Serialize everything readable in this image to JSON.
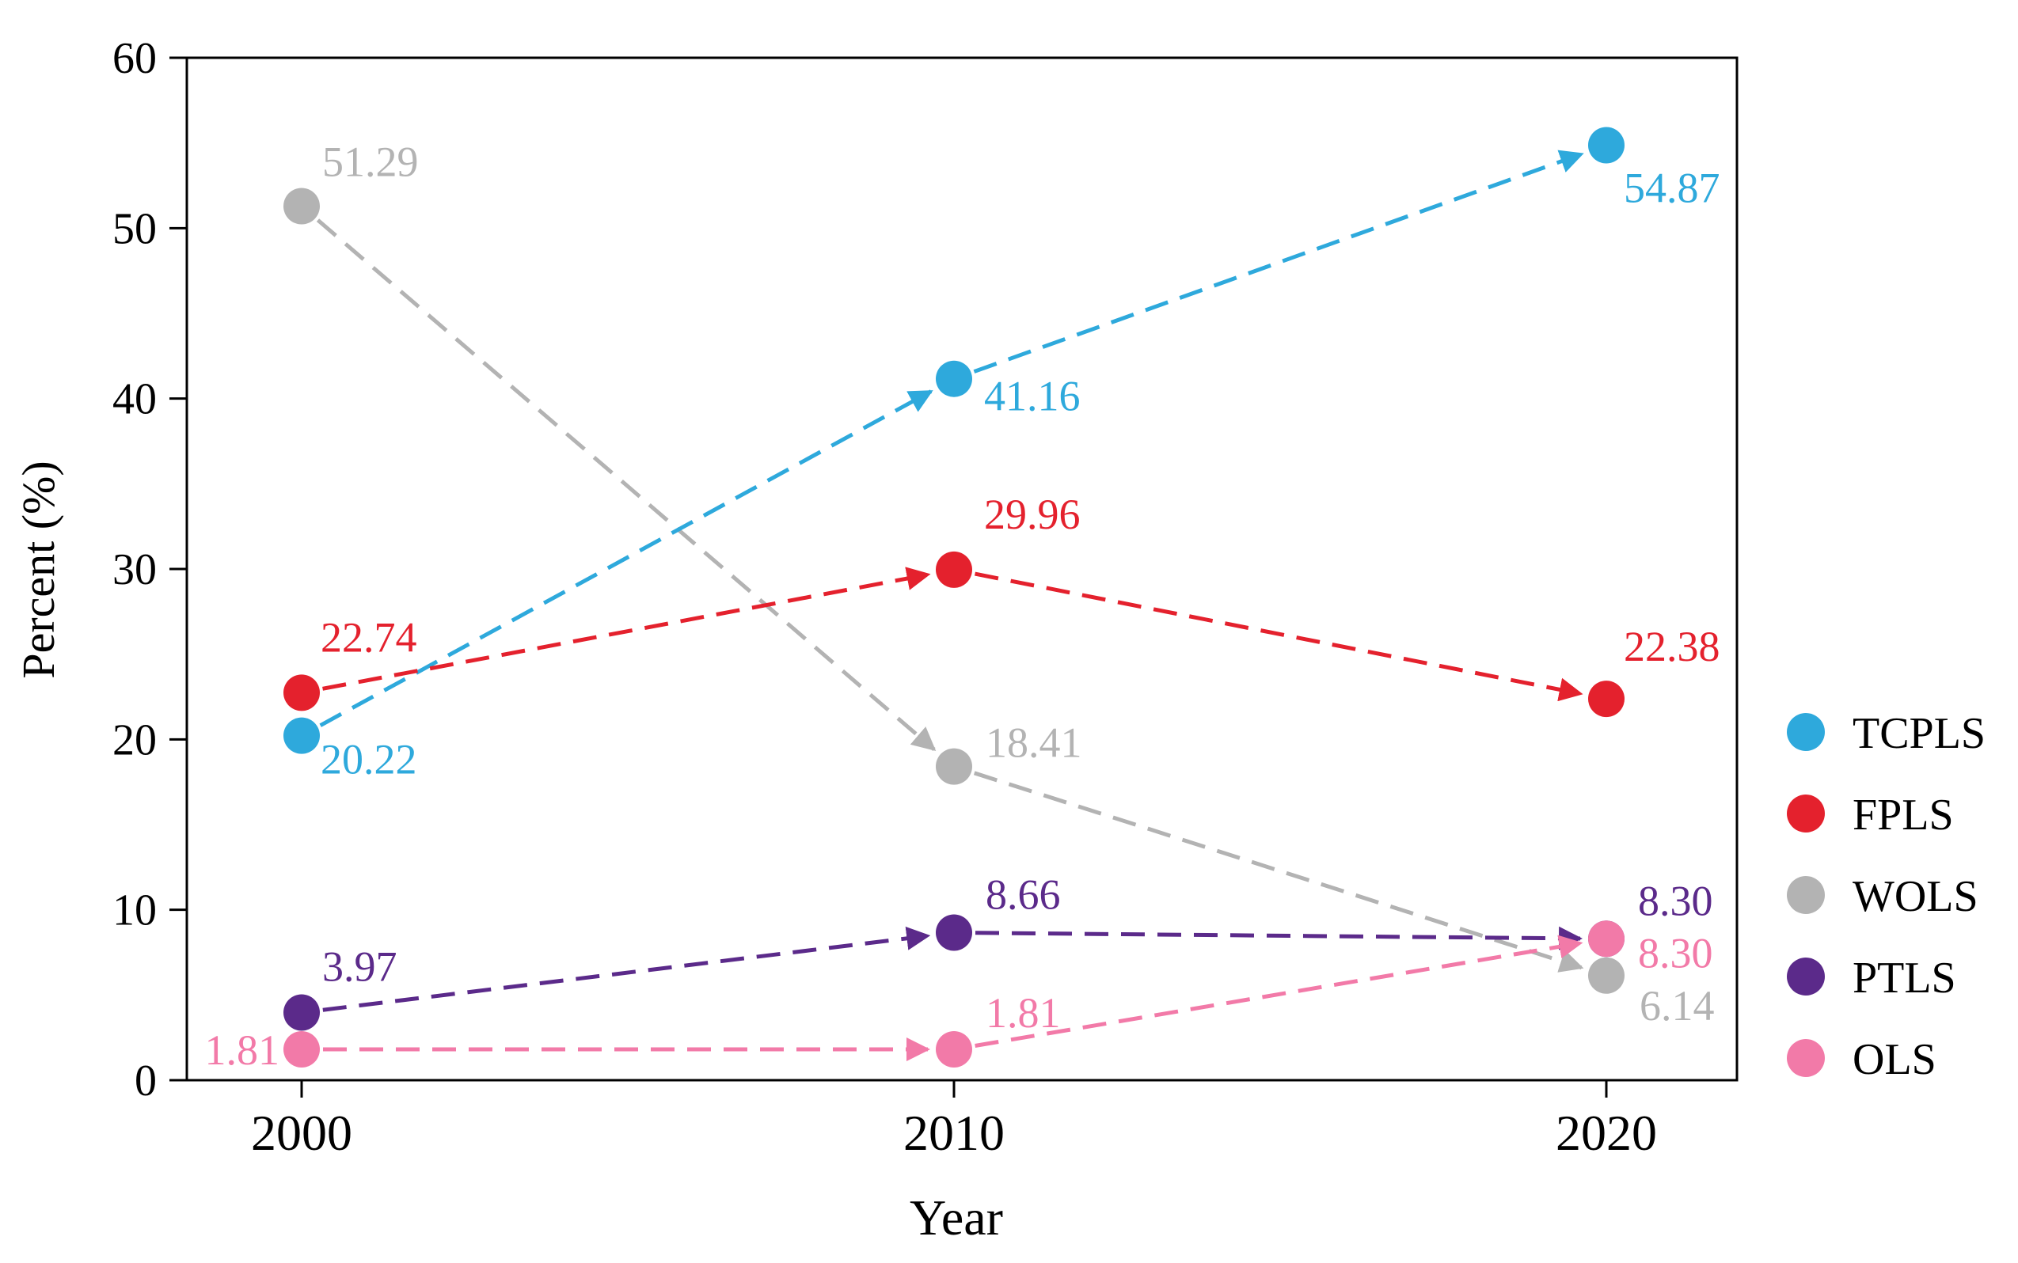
{
  "chart_data": {
    "type": "line",
    "title": "",
    "xlabel": "Year",
    "ylabel": "Percent (%)",
    "x": [
      2000,
      2010,
      2020
    ],
    "x_tick_labels": [
      "2000",
      "2010",
      "2020"
    ],
    "xlim": [
      1998.2,
      2022
    ],
    "ylim": [
      0,
      60
    ],
    "y_ticks": [
      0,
      10,
      20,
      30,
      40,
      50,
      60
    ],
    "y_tick_labels": [
      "0",
      "10",
      "20",
      "30",
      "40",
      "50",
      "60"
    ],
    "grid": false,
    "legend_position": "right",
    "line_style": "dashed with arrowheads",
    "series": [
      {
        "name": "TCPLS",
        "color": "#2ea9dc",
        "values": [
          20.22,
          41.16,
          54.87
        ],
        "labels": [
          "20.22",
          "41.16",
          "54.87"
        ]
      },
      {
        "name": "FPLS",
        "color": "#e4212d",
        "values": [
          22.74,
          29.96,
          22.38
        ],
        "labels": [
          "22.74",
          "29.96",
          "22.38"
        ]
      },
      {
        "name": "WOLS",
        "color": "#b3b3b3",
        "values": [
          51.29,
          18.41,
          6.14
        ],
        "labels": [
          "51.29",
          "18.41",
          "6.14"
        ]
      },
      {
        "name": "PTLS",
        "color": "#5b2a8a",
        "values": [
          3.97,
          8.66,
          8.3
        ],
        "labels": [
          "3.97",
          "8.66",
          "8.30"
        ]
      },
      {
        "name": "OLS",
        "color": "#f27aa8",
        "values": [
          1.81,
          1.81,
          8.3
        ],
        "labels": [
          "1.81",
          "1.81",
          "8.30"
        ]
      }
    ]
  }
}
